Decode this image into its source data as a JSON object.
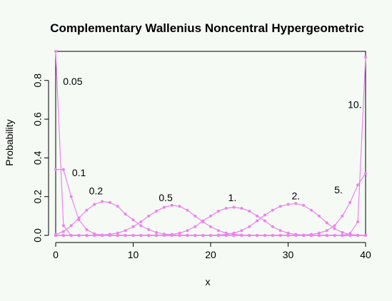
{
  "chart_data": {
    "type": "line",
    "title": "Complementary Wallenius Noncentral Hypergeometric",
    "xlabel": "x",
    "ylabel": "Probability",
    "xlim": [
      0,
      40
    ],
    "ylim": [
      0,
      0.95
    ],
    "x_ticks": [
      "0",
      "10",
      "20",
      "30",
      "40"
    ],
    "y_ticks": [
      "0.0",
      "0.2",
      "0.4",
      "0.6",
      "0.8"
    ],
    "grid": false,
    "line_color": "#ee82ee",
    "x": [
      0,
      1,
      2,
      3,
      4,
      5,
      6,
      7,
      8,
      9,
      10,
      11,
      12,
      13,
      14,
      15,
      16,
      17,
      18,
      19,
      20,
      21,
      22,
      23,
      24,
      25,
      26,
      27,
      28,
      29,
      30,
      31,
      32,
      33,
      34,
      35,
      36,
      37,
      38,
      39,
      40
    ],
    "series": [
      {
        "name": "0.05",
        "values": [
          0.95,
          0.05,
          0,
          0,
          0,
          0,
          0,
          0,
          0,
          0,
          0,
          0,
          0,
          0,
          0,
          0,
          0,
          0,
          0,
          0,
          0,
          0,
          0,
          0,
          0,
          0,
          0,
          0,
          0,
          0,
          0,
          0,
          0,
          0,
          0,
          0,
          0,
          0,
          0,
          0,
          0
        ]
      },
      {
        "name": "0.1",
        "values": [
          0.34,
          0.34,
          0.2,
          0.08,
          0.03,
          0.008,
          0.002,
          0,
          0,
          0,
          0,
          0,
          0,
          0,
          0,
          0,
          0,
          0,
          0,
          0,
          0,
          0,
          0,
          0,
          0,
          0,
          0,
          0,
          0,
          0,
          0,
          0,
          0,
          0,
          0,
          0,
          0,
          0,
          0,
          0,
          0
        ]
      },
      {
        "name": "0.2",
        "values": [
          0.005,
          0.02,
          0.05,
          0.09,
          0.13,
          0.16,
          0.175,
          0.17,
          0.15,
          0.11,
          0.08,
          0.05,
          0.03,
          0.015,
          0.007,
          0.003,
          0.001,
          0,
          0,
          0,
          0,
          0,
          0,
          0,
          0,
          0,
          0,
          0,
          0,
          0,
          0,
          0,
          0,
          0,
          0,
          0,
          0,
          0,
          0,
          0,
          0
        ]
      },
      {
        "name": "0.5",
        "values": [
          0,
          0,
          0,
          0,
          0,
          0,
          0.002,
          0.006,
          0.012,
          0.025,
          0.045,
          0.07,
          0.1,
          0.125,
          0.145,
          0.155,
          0.15,
          0.13,
          0.1,
          0.07,
          0.045,
          0.025,
          0.012,
          0.005,
          0.002,
          0,
          0,
          0,
          0,
          0,
          0,
          0,
          0,
          0,
          0,
          0,
          0,
          0,
          0,
          0,
          0
        ]
      },
      {
        "name": "1.",
        "values": [
          0,
          0,
          0,
          0,
          0,
          0,
          0,
          0,
          0,
          0,
          0,
          0,
          0,
          0,
          0.002,
          0.005,
          0.012,
          0.025,
          0.045,
          0.075,
          0.1,
          0.125,
          0.14,
          0.145,
          0.14,
          0.125,
          0.1,
          0.075,
          0.045,
          0.025,
          0.012,
          0.005,
          0.002,
          0,
          0,
          0,
          0,
          0,
          0,
          0,
          0
        ]
      },
      {
        "name": "2.",
        "values": [
          0,
          0,
          0,
          0,
          0,
          0,
          0,
          0,
          0,
          0,
          0,
          0,
          0,
          0,
          0,
          0,
          0,
          0,
          0,
          0,
          0,
          0.002,
          0.005,
          0.012,
          0.025,
          0.045,
          0.075,
          0.105,
          0.13,
          0.15,
          0.16,
          0.165,
          0.155,
          0.13,
          0.1,
          0.065,
          0.035,
          0.015,
          0.005,
          0.001,
          0
        ]
      },
      {
        "name": "5.",
        "values": [
          0,
          0,
          0,
          0,
          0,
          0,
          0,
          0,
          0,
          0,
          0,
          0,
          0,
          0,
          0,
          0,
          0,
          0,
          0,
          0,
          0,
          0,
          0,
          0,
          0,
          0,
          0,
          0,
          0,
          0,
          0,
          0,
          0.002,
          0.005,
          0.012,
          0.025,
          0.05,
          0.1,
          0.17,
          0.26,
          0.32
        ]
      },
      {
        "name": "10.",
        "values": [
          0,
          0,
          0,
          0,
          0,
          0,
          0,
          0,
          0,
          0,
          0,
          0,
          0,
          0,
          0,
          0,
          0,
          0,
          0,
          0,
          0,
          0,
          0,
          0,
          0,
          0,
          0,
          0,
          0,
          0,
          0,
          0,
          0,
          0,
          0,
          0,
          0,
          0,
          0.01,
          0.07,
          0.92
        ]
      }
    ],
    "annotations": [
      {
        "text": "0.05",
        "x": 2.2,
        "y": 0.79
      },
      {
        "text": "0.1",
        "x": 3.0,
        "y": 0.32
      },
      {
        "text": "0.2",
        "x": 5.2,
        "y": 0.225
      },
      {
        "text": "0.5",
        "x": 14.2,
        "y": 0.19
      },
      {
        "text": "1.",
        "x": 22.8,
        "y": 0.19
      },
      {
        "text": "2.",
        "x": 31.0,
        "y": 0.2
      },
      {
        "text": "5.",
        "x": 36.5,
        "y": 0.23
      },
      {
        "text": "10.",
        "x": 38.6,
        "y": 0.67
      }
    ]
  }
}
